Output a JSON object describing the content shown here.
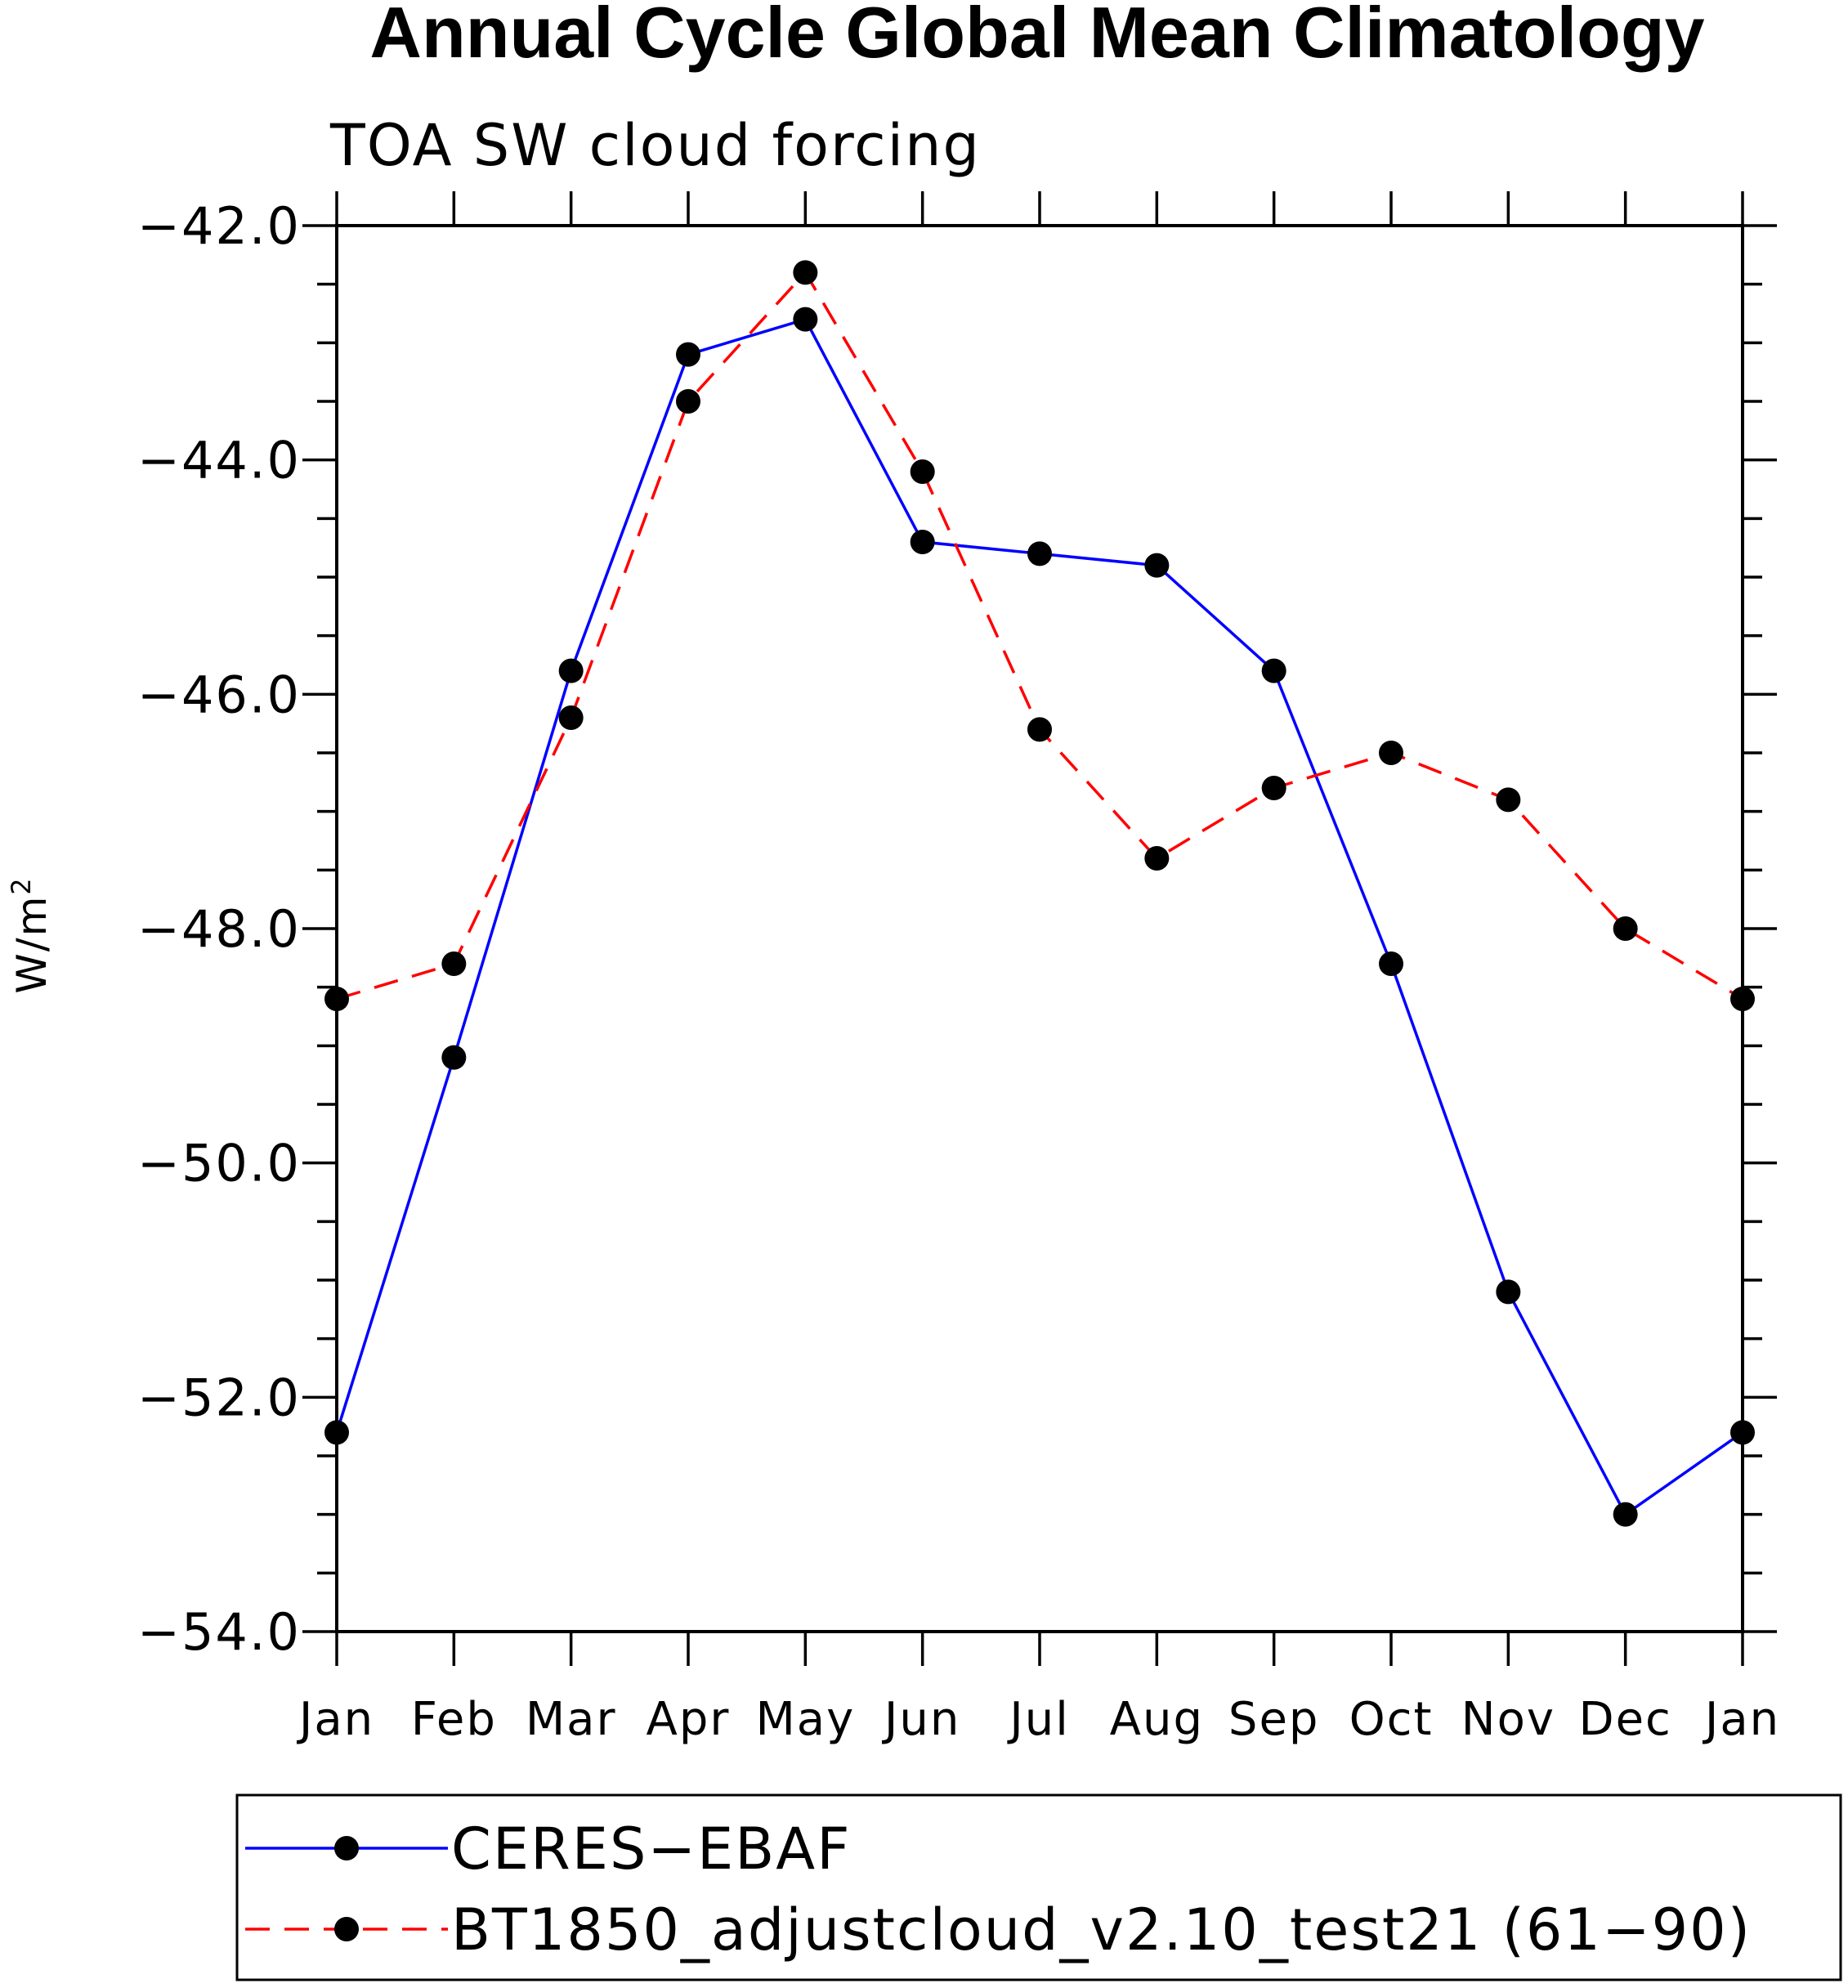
{
  "chart_data": {
    "type": "line",
    "title": "Annual Cycle Global Mean Climatology",
    "subtitle": "TOA SW cloud forcing",
    "xlabel": "",
    "ylabel": "W/m",
    "ylabel_superscript": "2",
    "categories": [
      "Jan",
      "Feb",
      "Mar",
      "Apr",
      "May",
      "Jun",
      "Jul",
      "Aug",
      "Sep",
      "Oct",
      "Nov",
      "Dec",
      "Jan"
    ],
    "ylim": [
      -54.0,
      -42.0
    ],
    "yticks": [
      -42.0,
      -44.0,
      -46.0,
      -48.0,
      -50.0,
      -52.0,
      -54.0
    ],
    "ytick_labels": [
      "−42.0",
      "−44.0",
      "−46.0",
      "−48.0",
      "−50.0",
      "−52.0",
      "−54.0"
    ],
    "grid": false,
    "legend_position": "bottom",
    "series": [
      {
        "name": "CERES−EBAF",
        "color": "#0000ff",
        "dash": "solid",
        "marker": "filled-circle",
        "values": [
          -52.3,
          -49.1,
          -45.8,
          -43.1,
          -42.8,
          -44.7,
          -44.8,
          -44.9,
          -45.8,
          -48.3,
          -51.1,
          -53.0,
          -52.3
        ]
      },
      {
        "name": "BT1850_adjustcloud_v2.10_test21 (61−90)",
        "color": "#ff0000",
        "dash": "dashed",
        "marker": "filled-circle",
        "values": [
          -48.6,
          -48.3,
          -46.2,
          -43.5,
          -42.4,
          -44.1,
          -46.3,
          -47.4,
          -46.8,
          -46.5,
          -46.9,
          -48.0,
          -48.6
        ]
      }
    ]
  }
}
